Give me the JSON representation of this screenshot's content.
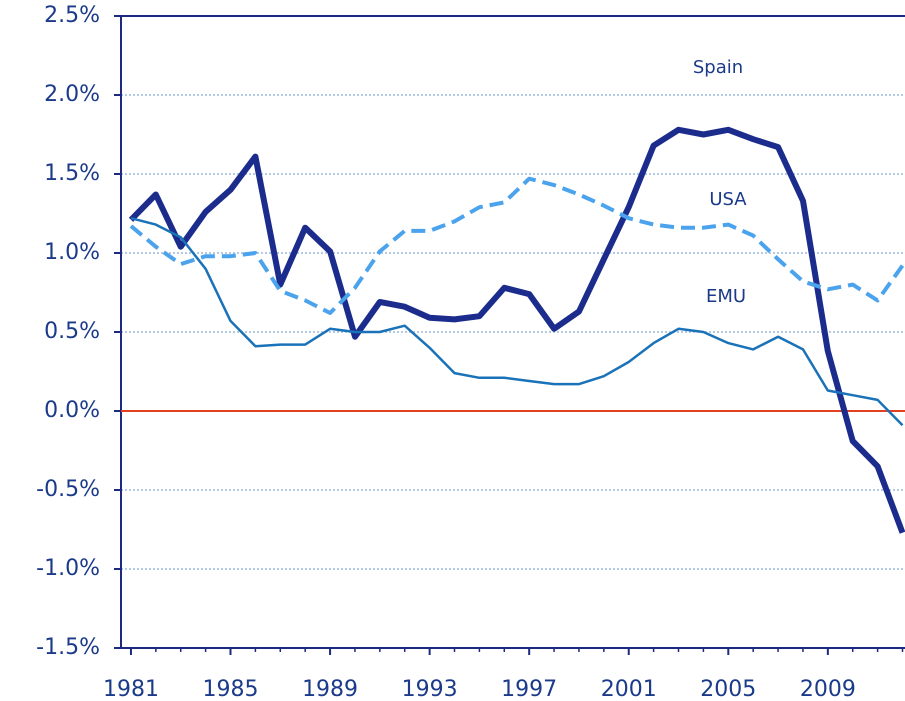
{
  "chart_data": {
    "type": "line",
    "x": [
      1981,
      1982,
      1983,
      1984,
      1985,
      1986,
      1987,
      1988,
      1989,
      1990,
      1991,
      1992,
      1993,
      1994,
      1995,
      1996,
      1997,
      1998,
      1999,
      2000,
      2001,
      2002,
      2003,
      2004,
      2005,
      2006,
      2007,
      2008,
      2009,
      2010,
      2011,
      2012
    ],
    "series": [
      {
        "name": "Spain",
        "color": "#1c2c8c",
        "values": [
          1.21,
          1.37,
          1.04,
          1.26,
          1.4,
          1.61,
          0.8,
          1.16,
          1.01,
          0.47,
          0.69,
          0.66,
          0.59,
          0.58,
          0.6,
          0.78,
          0.74,
          0.52,
          0.63,
          0.96,
          1.29,
          1.68,
          1.78,
          1.75,
          1.78,
          1.72,
          1.67,
          1.33,
          0.38,
          -0.19,
          -0.35,
          -0.77
        ]
      },
      {
        "name": "USA",
        "color": "#4aa3ec",
        "values": [
          1.17,
          1.04,
          0.93,
          0.98,
          0.98,
          1.0,
          0.76,
          0.7,
          0.62,
          0.78,
          1.01,
          1.14,
          1.14,
          1.2,
          1.29,
          1.32,
          1.47,
          1.43,
          1.37,
          1.3,
          1.22,
          1.18,
          1.16,
          1.16,
          1.18,
          1.11,
          0.96,
          0.82,
          0.77,
          0.8,
          0.7,
          0.92
        ]
      },
      {
        "name": "EMU",
        "color": "#1a72b8",
        "values": [
          1.22,
          1.18,
          1.1,
          0.9,
          0.57,
          0.41,
          0.42,
          0.42,
          0.52,
          0.5,
          0.5,
          0.54,
          0.4,
          0.24,
          0.21,
          0.21,
          0.19,
          0.17,
          0.17,
          0.22,
          0.31,
          0.43,
          0.52,
          0.5,
          0.43,
          0.39,
          0.47,
          0.39,
          0.13,
          0.1,
          0.07,
          -0.09
        ]
      }
    ],
    "xlim": [
      1980.6,
      2012.1
    ],
    "xticks": [
      1981,
      1985,
      1989,
      1993,
      1997,
      2001,
      2005,
      2009
    ],
    "ylim": [
      -1.5,
      2.5
    ],
    "yticks": [
      {
        "value": -1.5,
        "label": "-1.5%"
      },
      {
        "value": -1,
        "label": "-1.0%"
      },
      {
        "value": -0.5,
        "label": "-0.5%"
      },
      {
        "value": 0,
        "label": "0.0%"
      },
      {
        "value": 0.5,
        "label": "0.5%"
      },
      {
        "value": 1,
        "label": "1.0%"
      },
      {
        "value": 1.5,
        "label": "1.5%"
      },
      {
        "value": 2,
        "label": "2.0%"
      },
      {
        "value": 2.5,
        "label": "2.5%"
      }
    ],
    "reference_line": {
      "value": 0,
      "color": "#e2401e"
    },
    "grid": true
  }
}
